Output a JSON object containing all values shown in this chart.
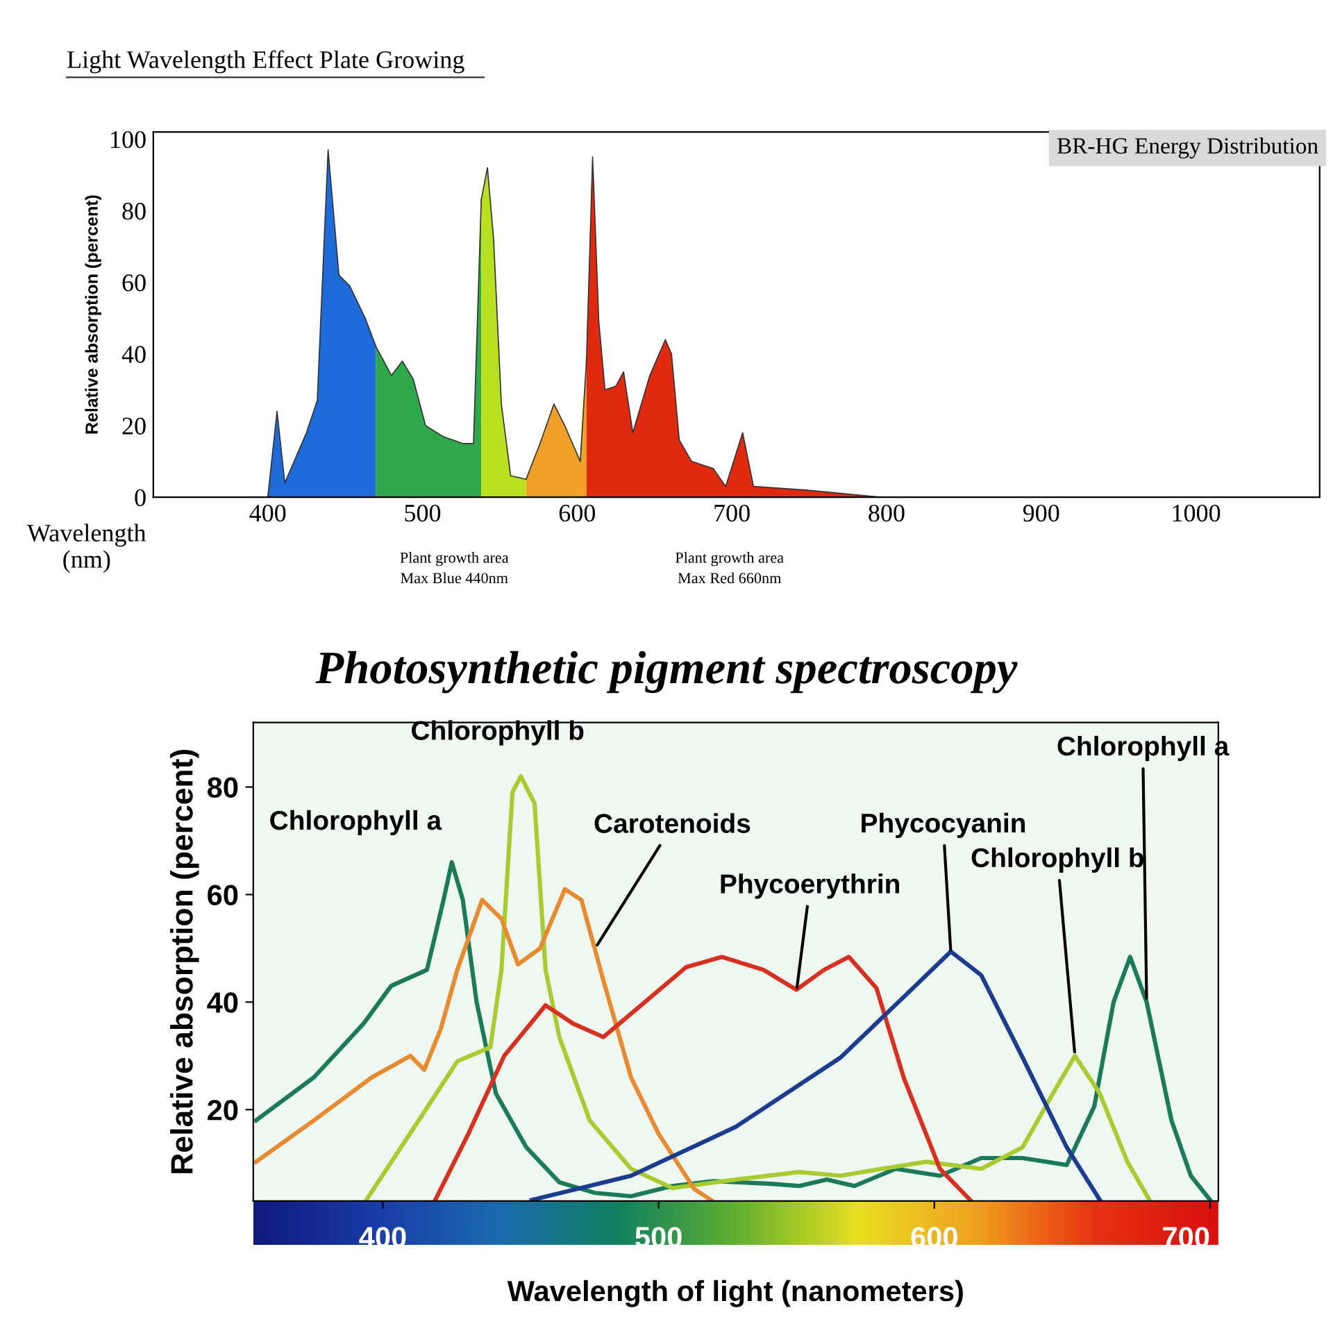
{
  "chart_data": [
    {
      "type": "area",
      "title": "Light Wavelength Effect Plate Growing",
      "xlabel": "Wavelength\n(nm)",
      "ylabel": "Relative absorption (percent)",
      "annotations": [
        "BR-HG Energy Distribution",
        "Plant growth area\nMax Blue 440nm",
        "Plant growth area\nMax Red 660nm"
      ],
      "xlim": [
        326,
        1080
      ],
      "ylim": [
        0,
        102
      ],
      "xticks": [
        400,
        500,
        600,
        700,
        800,
        900,
        1000
      ],
      "yticks": [
        0,
        20,
        40,
        60,
        80,
        100
      ],
      "series": [
        {
          "color": "#1e6ad8",
          "x": [
            400,
            406,
            411,
            425,
            432,
            439,
            446,
            453,
            463,
            470
          ],
          "values": [
            0,
            24,
            4,
            18,
            27,
            97,
            62,
            59,
            50,
            42
          ]
        },
        {
          "color": "#2ea84a",
          "x": [
            470,
            480,
            487,
            494,
            502,
            513,
            526,
            533,
            538
          ],
          "values": [
            42,
            34,
            38,
            33,
            20,
            17,
            15,
            15,
            83
          ]
        },
        {
          "color": "#b8e020",
          "x": [
            538,
            542,
            546,
            551,
            557,
            567
          ],
          "values": [
            83,
            92,
            72,
            26,
            6,
            5
          ]
        },
        {
          "color": "#f0a028",
          "x": [
            567,
            576,
            585,
            592,
            602,
            606
          ],
          "values": [
            5,
            15,
            26,
            20,
            10,
            38
          ]
        },
        {
          "color": "#e02a10",
          "x": [
            606,
            610,
            614,
            618,
            625,
            630,
            636,
            647,
            657,
            661,
            666,
            674,
            688,
            696,
            707,
            714,
            748,
            797
          ],
          "values": [
            38,
            95,
            49,
            30,
            31,
            35,
            18,
            34,
            44,
            40,
            16,
            10,
            8,
            3,
            18,
            3,
            2,
            0
          ]
        }
      ]
    },
    {
      "type": "line",
      "title": "Photosynthetic pigment spectroscopy",
      "xlabel": "Wavelength of light (nanometers)",
      "ylabel": "Relative absorption (percent)",
      "xlim": [
        353,
        703
      ],
      "ylim": [
        3,
        92
      ],
      "xticks": [
        400,
        500,
        600,
        700
      ],
      "yticks": [
        20,
        40,
        60,
        80
      ],
      "annotations": [
        {
          "text": "Chlorophyll a",
          "x": 425,
          "y": 66
        },
        {
          "text": "Chlorophyll b",
          "x": 450,
          "y": 82
        },
        {
          "text": "Carotenoids",
          "x": 477,
          "y": 50
        },
        {
          "text": "Phycoerythrin",
          "x": 550,
          "y": 42
        },
        {
          "text": "Phycocyanin",
          "x": 606,
          "y": 49
        },
        {
          "text": "Chlorophyll b",
          "x": 651,
          "y": 30
        },
        {
          "text": "Chlorophyll a",
          "x": 677,
          "y": 40
        }
      ],
      "series": [
        {
          "color": "#1a7a5a",
          "x": [
            354,
            375,
            393,
            403,
            416,
            422,
            425,
            429,
            434,
            441,
            452,
            464,
            477,
            490,
            505,
            520,
            541,
            551,
            561,
            571,
            586,
            602,
            617,
            632,
            648,
            658,
            665,
            671,
            677,
            686,
            693,
            700
          ],
          "values": [
            18,
            26,
            36,
            43,
            46,
            59,
            66,
            59,
            40,
            23,
            13,
            6.5,
            4.5,
            3.9,
            5.8,
            6.7,
            6.2,
            5.8,
            7,
            5.8,
            9,
            7.7,
            11,
            11,
            9.7,
            20.6,
            40,
            48.4,
            40,
            18,
            7.7,
            3.2
          ]
        },
        {
          "color": "#a8cc30",
          "x": [
            394,
            413,
            427,
            439,
            443,
            447,
            450,
            455,
            459,
            464,
            475,
            490,
            505,
            528,
            551,
            566,
            581,
            597,
            617,
            632,
            643,
            651,
            660,
            670,
            678
          ],
          "values": [
            3.2,
            18,
            29,
            31.6,
            46,
            79,
            82,
            77,
            46,
            33.5,
            18,
            9,
            5.4,
            7,
            8.4,
            7.7,
            9,
            10.3,
            9,
            13,
            23,
            30,
            23,
            10.3,
            3.2
          ]
        },
        {
          "color": "#e88a30",
          "x": [
            354,
            375,
            396,
            410,
            415,
            421,
            427,
            436,
            443,
            449,
            457,
            466,
            472,
            480,
            490,
            500,
            513,
            519
          ],
          "values": [
            10.3,
            18,
            26,
            30,
            27.4,
            35,
            46,
            59,
            55.5,
            47,
            50,
            61,
            59,
            44,
            26,
            15.5,
            5.2,
            3.2
          ]
        },
        {
          "color": "#d83020",
          "x": [
            419,
            431,
            444,
            459,
            469,
            480,
            495,
            510,
            523,
            538,
            550,
            560,
            569,
            579,
            589,
            602,
            613
          ],
          "values": [
            3.2,
            15.5,
            30,
            39.4,
            36,
            33.5,
            40,
            46.5,
            48.4,
            46,
            42.3,
            46,
            48.4,
            42.6,
            25.8,
            9,
            3.2
          ]
        },
        {
          "color": "#1c3c90",
          "x": [
            454,
            490,
            528,
            566,
            589,
            606,
            617,
            632,
            648,
            660
          ],
          "values": [
            3.2,
            7.7,
            16.8,
            29.7,
            41,
            49.4,
            45,
            29.7,
            13,
            3.2
          ]
        }
      ]
    }
  ]
}
